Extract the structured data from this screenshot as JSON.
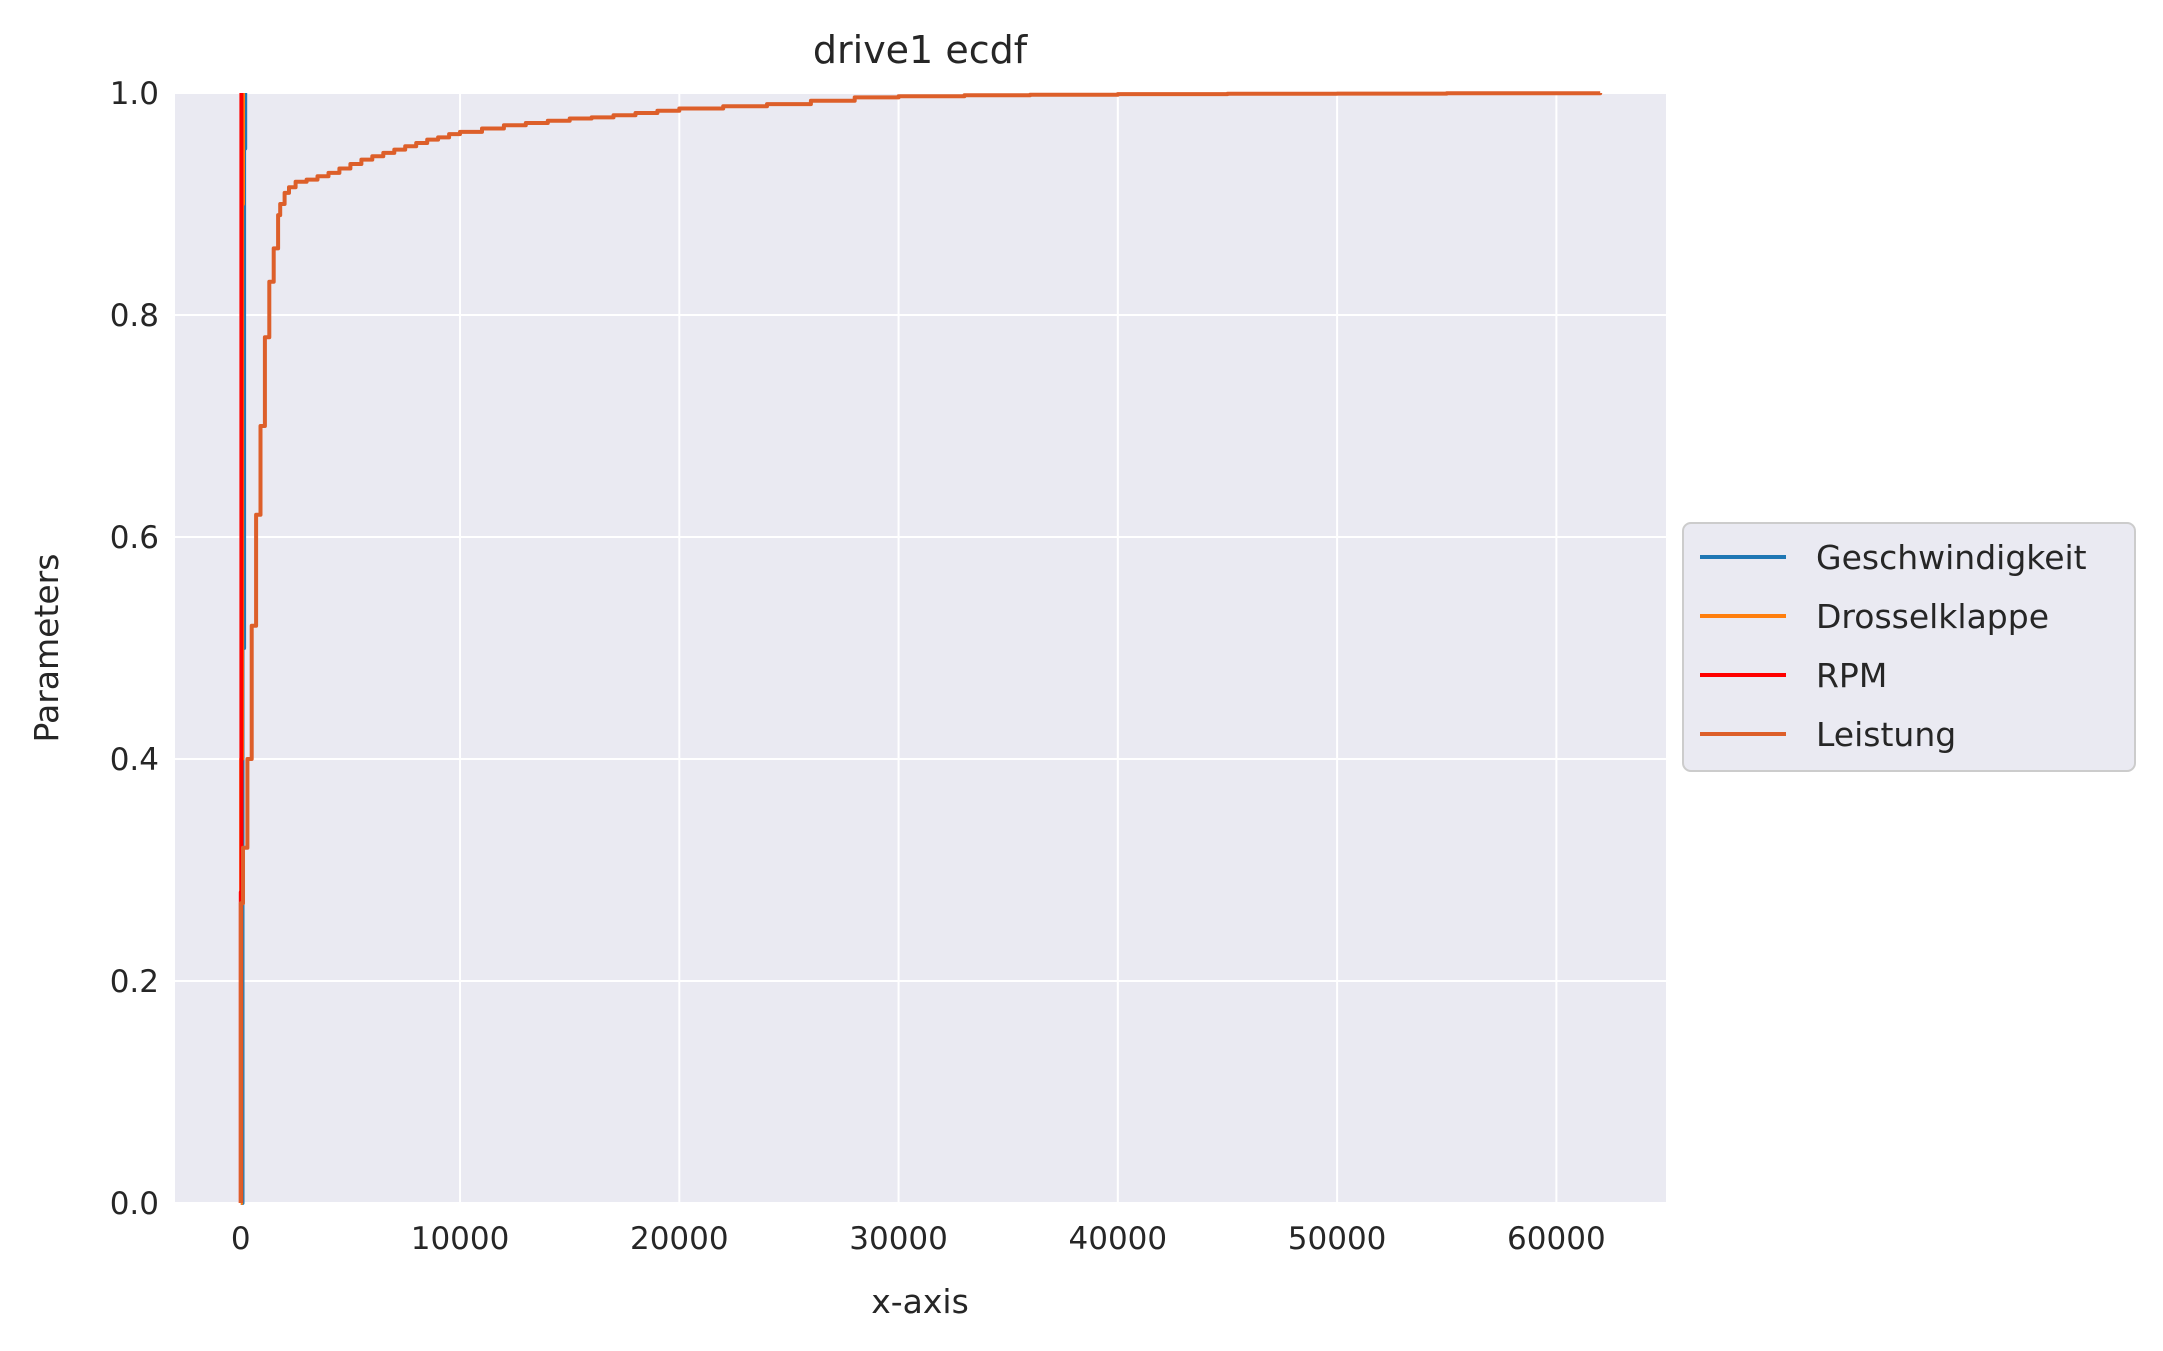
{
  "chart_data": {
    "type": "line",
    "title": "drive1 ecdf",
    "xlabel": "x-axis",
    "ylabel": "Parameters",
    "xlim": [
      -3000,
      65000
    ],
    "ylim": [
      0,
      1
    ],
    "xticks": [
      0,
      10000,
      20000,
      30000,
      40000,
      50000,
      60000
    ],
    "yticks": [
      0.0,
      0.2,
      0.4,
      0.6,
      0.8,
      1.0
    ],
    "xtick_labels": [
      "0",
      "10000",
      "20000",
      "30000",
      "40000",
      "50000",
      "60000"
    ],
    "ytick_labels": [
      "0.0",
      "0.2",
      "0.4",
      "0.6",
      "0.8",
      "1.0"
    ],
    "grid": true,
    "legend_position": "outside-right",
    "background_color": "#eaeaf2",
    "series": [
      {
        "name": "Geschwindigkeit",
        "color": "#1f77b4",
        "x": [
          0,
          80,
          150,
          200
        ],
        "y": [
          0,
          0.5,
          0.95,
          1.0
        ]
      },
      {
        "name": "Drosselklappe",
        "color": "#ff7f0e",
        "x": [
          0,
          20,
          60,
          100
        ],
        "y": [
          0,
          0.4,
          0.9,
          1.0
        ]
      },
      {
        "name": "RPM",
        "color": "#ff0000",
        "x": [
          0,
          0,
          30,
          30
        ],
        "y": [
          0,
          0.28,
          0.28,
          1.0
        ]
      },
      {
        "name": "Leistung",
        "color": "#dd5f2a",
        "x": [
          0,
          0,
          100,
          300,
          500,
          700,
          900,
          1100,
          1300,
          1500,
          1700,
          1800,
          2000,
          2200,
          2500,
          3000,
          3500,
          4000,
          4500,
          5000,
          5500,
          6000,
          6500,
          7000,
          7500,
          8000,
          8500,
          9000,
          9500,
          10000,
          11000,
          12000,
          13000,
          14000,
          15000,
          16000,
          17000,
          18000,
          19000,
          20000,
          22000,
          24000,
          26000,
          28000,
          30000,
          33000,
          36000,
          40000,
          45000,
          50000,
          55000,
          62000
        ],
        "y": [
          0,
          0.27,
          0.32,
          0.4,
          0.52,
          0.62,
          0.7,
          0.78,
          0.83,
          0.86,
          0.89,
          0.9,
          0.91,
          0.915,
          0.92,
          0.922,
          0.925,
          0.928,
          0.932,
          0.936,
          0.94,
          0.943,
          0.946,
          0.949,
          0.952,
          0.955,
          0.958,
          0.96,
          0.963,
          0.965,
          0.968,
          0.971,
          0.973,
          0.975,
          0.977,
          0.978,
          0.98,
          0.982,
          0.984,
          0.986,
          0.988,
          0.99,
          0.993,
          0.996,
          0.997,
          0.998,
          0.9985,
          0.999,
          0.9993,
          0.9995,
          0.9998,
          1.0
        ]
      }
    ]
  }
}
